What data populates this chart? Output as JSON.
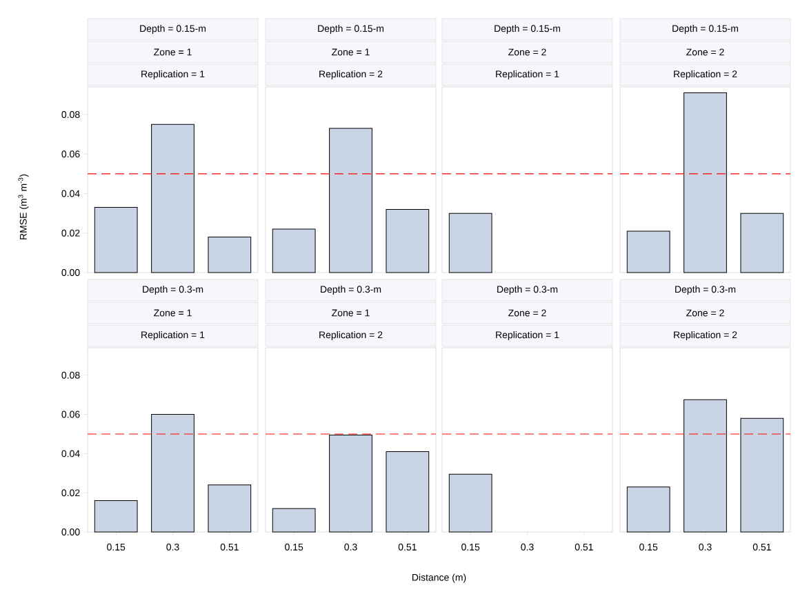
{
  "chart_data": [
    {
      "type": "bar",
      "title": "Depth = 0.15-m",
      "subtitle": "Zone = 1",
      "annotations": [
        "Replication = 1"
      ],
      "ylabel": "RMSE (m$^{3}$ m$^{-3}$)",
      "categories": [
        "0.15",
        "0.3",
        "0.51"
      ],
      "values": [
        0.033,
        0.075,
        0.018
      ],
      "color": "#c9d5e5",
      "ylim": [
        0,
        0.094
      ],
      "yticks": [
        {
          "value": 0,
          "label": "0.00"
        },
        {
          "value": 0.02,
          "label": "0.02"
        },
        {
          "value": 0.04,
          "label": "0.04"
        },
        {
          "value": 0.06,
          "label": "0.06"
        },
        {
          "value": 0.08,
          "label": "0.08"
        }
      ],
      "ref_lines": [
        {
          "axis": "y",
          "value": 0.05,
          "color": "#ff0000",
          "line_style": "dashed"
        }
      ],
      "tick_labels": "y"
    },
    {
      "type": "bar",
      "title": "Depth = 0.15-m",
      "subtitle": "Zone = 1",
      "annotations": [
        "Replication = 2"
      ],
      "categories": [
        "0.15",
        "0.3",
        "0.51"
      ],
      "values": [
        0.022,
        0.073,
        0.032
      ],
      "color": "#c9d5e5",
      "ylim": [
        0,
        0.094
      ],
      "ref_lines": [
        {
          "axis": "y",
          "value": 0.05,
          "color": "#ff0000",
          "line_style": "dashed"
        }
      ],
      "tick_labels": false
    },
    {
      "type": "bar",
      "title": "Depth = 0.15-m",
      "subtitle": "Zone = 2",
      "annotations": [
        "Replication = 1"
      ],
      "categories": [
        "0.15",
        "0.3",
        "0.51"
      ],
      "values": [
        0.03,
        null,
        null
      ],
      "color": "#c9d5e5",
      "ylim": [
        0,
        0.094
      ],
      "ref_lines": [
        {
          "axis": "y",
          "value": 0.05,
          "color": "#ff0000",
          "line_style": "dashed"
        }
      ],
      "tick_labels": false
    },
    {
      "type": "bar",
      "title": "Depth = 0.15-m",
      "subtitle": "Zone = 2",
      "annotations": [
        "Replication = 2"
      ],
      "categories": [
        "0.15",
        "0.3",
        "0.51"
      ],
      "values": [
        0.021,
        0.091,
        0.03
      ],
      "color": "#c9d5e5",
      "ylim": [
        0,
        0.094
      ],
      "ref_lines": [
        {
          "axis": "y",
          "value": 0.05,
          "color": "#ff0000",
          "line_style": "dashed"
        }
      ],
      "tick_labels": false
    },
    {
      "type": "bar",
      "title": "Depth = 0.3-m",
      "subtitle": "Zone = 1",
      "annotations": [
        "Replication = 1"
      ],
      "categories": [
        "0.15",
        "0.3",
        "0.51"
      ],
      "values": [
        0.016,
        0.06,
        0.024
      ],
      "color": "#c9d5e5",
      "ylim": [
        0,
        0.094
      ],
      "yticks": [
        {
          "value": 0,
          "label": "0.00"
        },
        {
          "value": 0.02,
          "label": "0.02"
        },
        {
          "value": 0.04,
          "label": "0.04"
        },
        {
          "value": 0.06,
          "label": "0.06"
        },
        {
          "value": 0.08,
          "label": "0.08"
        }
      ],
      "ref_lines": [
        {
          "axis": "y",
          "value": 0.05,
          "color": "#ff0000",
          "line_style": "dashed"
        }
      ]
    },
    {
      "type": "bar",
      "title": "Depth = 0.3-m",
      "subtitle": "Zone = 1",
      "annotations": [
        "Replication = 2"
      ],
      "xlabel": "Distance (m)",
      "categories": [
        "0.15",
        "0.3",
        "0.51"
      ],
      "values": [
        0.012,
        0.0495,
        0.041
      ],
      "color": "#c9d5e5",
      "ylim": [
        0,
        0.094
      ],
      "ref_lines": [
        {
          "axis": "y",
          "value": 0.05,
          "color": "#ff0000",
          "line_style": "dashed"
        }
      ],
      "tick_labels": "x"
    },
    {
      "type": "bar",
      "title": "Depth = 0.3-m",
      "subtitle": "Zone = 2",
      "annotations": [
        "Replication = 1"
      ],
      "categories": [
        "0.15",
        "0.3",
        "0.51"
      ],
      "values": [
        0.0295,
        null,
        null
      ],
      "color": "#c9d5e5",
      "ylim": [
        0,
        0.094
      ],
      "ref_lines": [
        {
          "axis": "y",
          "value": 0.05,
          "color": "#ff0000",
          "line_style": "dashed"
        }
      ],
      "tick_labels": "x"
    },
    {
      "type": "bar",
      "title": "Depth = 0.3-m",
      "subtitle": "Zone = 2",
      "annotations": [
        "Replication = 2"
      ],
      "categories": [
        "0.15",
        "0.3",
        "0.51"
      ],
      "values": [
        0.023,
        0.0675,
        0.058
      ],
      "color": "#c9d5e5",
      "ylim": [
        0,
        0.094
      ],
      "ref_lines": [
        {
          "axis": "y",
          "value": 0.05,
          "color": "#ff0000",
          "line_style": "dashed"
        }
      ],
      "tick_labels": "x"
    }
  ]
}
